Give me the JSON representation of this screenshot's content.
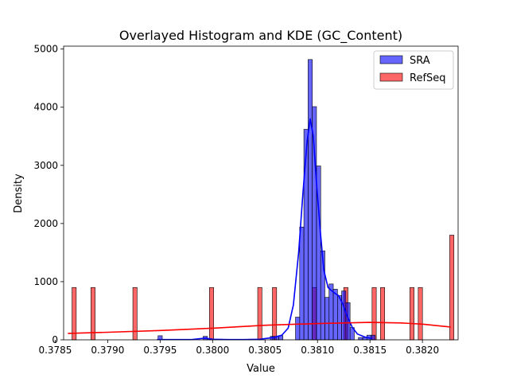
{
  "chart_data": {
    "type": "bar",
    "title": "Overlayed Histogram and KDE (GC_Content)",
    "xlabel": "Value",
    "ylabel": "Density",
    "xlim": [
      0.37858,
      0.38234
    ],
    "ylim": [
      0,
      5050
    ],
    "xticks": [
      "0.3785",
      "0.3790",
      "0.3795",
      "0.3800",
      "0.3805",
      "0.3810",
      "0.3815",
      "0.3820"
    ],
    "xtick_values": [
      0.3785,
      0.379,
      0.3795,
      0.38,
      0.3805,
      0.381,
      0.3815,
      0.382
    ],
    "yticks": [
      "0",
      "1000",
      "2000",
      "3000",
      "4000",
      "5000"
    ],
    "ytick_values": [
      0,
      1000,
      2000,
      3000,
      4000,
      5000
    ],
    "legend_position": "top-right",
    "series": [
      {
        "name": "SRA",
        "kind": "histogram+kde",
        "color": "#0000ff",
        "bin_width": 4.02e-05,
        "bins": [
          {
            "x": 0.37948,
            "y": 70
          },
          {
            "x": 0.37991,
            "y": 60
          },
          {
            "x": 0.37995,
            "y": 20
          },
          {
            "x": 0.38055,
            "y": 60
          },
          {
            "x": 0.38059,
            "y": 60
          },
          {
            "x": 0.38063,
            "y": 70
          },
          {
            "x": 0.38079,
            "y": 390
          },
          {
            "x": 0.38083,
            "y": 1940
          },
          {
            "x": 0.38087,
            "y": 3620
          },
          {
            "x": 0.38091,
            "y": 4820
          },
          {
            "x": 0.38095,
            "y": 4010
          },
          {
            "x": 0.38099,
            "y": 2990
          },
          {
            "x": 0.38103,
            "y": 1530
          },
          {
            "x": 0.38107,
            "y": 730
          },
          {
            "x": 0.38111,
            "y": 960
          },
          {
            "x": 0.38115,
            "y": 870
          },
          {
            "x": 0.38119,
            "y": 760
          },
          {
            "x": 0.38123,
            "y": 840
          },
          {
            "x": 0.38127,
            "y": 640
          },
          {
            "x": 0.38131,
            "y": 210
          },
          {
            "x": 0.38139,
            "y": 40
          },
          {
            "x": 0.38143,
            "y": 40
          },
          {
            "x": 0.38147,
            "y": 80
          },
          {
            "x": 0.38151,
            "y": 80
          }
        ],
        "kde": [
          [
            0.37947,
            5
          ],
          [
            0.37965,
            5
          ],
          [
            0.3798,
            5
          ],
          [
            0.37993,
            30
          ],
          [
            0.38,
            10
          ],
          [
            0.38015,
            5
          ],
          [
            0.3803,
            5
          ],
          [
            0.38045,
            10
          ],
          [
            0.38058,
            40
          ],
          [
            0.38066,
            80
          ],
          [
            0.38072,
            200
          ],
          [
            0.38077,
            600
          ],
          [
            0.38082,
            1500
          ],
          [
            0.38086,
            2500
          ],
          [
            0.3809,
            3400
          ],
          [
            0.38093,
            3800
          ],
          [
            0.38096,
            3500
          ],
          [
            0.38099,
            2700
          ],
          [
            0.38103,
            1800
          ],
          [
            0.38106,
            1200
          ],
          [
            0.3811,
            900
          ],
          [
            0.38115,
            820
          ],
          [
            0.3812,
            760
          ],
          [
            0.38124,
            620
          ],
          [
            0.38128,
            420
          ],
          [
            0.38133,
            220
          ],
          [
            0.38138,
            100
          ],
          [
            0.38145,
            50
          ],
          [
            0.38152,
            20
          ]
        ]
      },
      {
        "name": "RefSeq",
        "kind": "histogram+kde",
        "color": "#ff0000",
        "bin_width": 4.02e-05,
        "bins": [
          {
            "x": 0.37866,
            "y": 900
          },
          {
            "x": 0.37884,
            "y": 900
          },
          {
            "x": 0.37924,
            "y": 900
          },
          {
            "x": 0.37997,
            "y": 900
          },
          {
            "x": 0.38043,
            "y": 900
          },
          {
            "x": 0.38057,
            "y": 900
          },
          {
            "x": 0.38095,
            "y": 900
          },
          {
            "x": 0.38125,
            "y": 900
          },
          {
            "x": 0.38152,
            "y": 900
          },
          {
            "x": 0.3816,
            "y": 900
          },
          {
            "x": 0.38188,
            "y": 900
          },
          {
            "x": 0.38196,
            "y": 900
          },
          {
            "x": 0.38226,
            "y": 1800
          }
        ],
        "kde": [
          [
            0.37862,
            110
          ],
          [
            0.379,
            130
          ],
          [
            0.3795,
            160
          ],
          [
            0.38,
            200
          ],
          [
            0.3805,
            250
          ],
          [
            0.381,
            280
          ],
          [
            0.3815,
            300
          ],
          [
            0.3818,
            290
          ],
          [
            0.382,
            270
          ],
          [
            0.38227,
            220
          ]
        ]
      }
    ]
  }
}
